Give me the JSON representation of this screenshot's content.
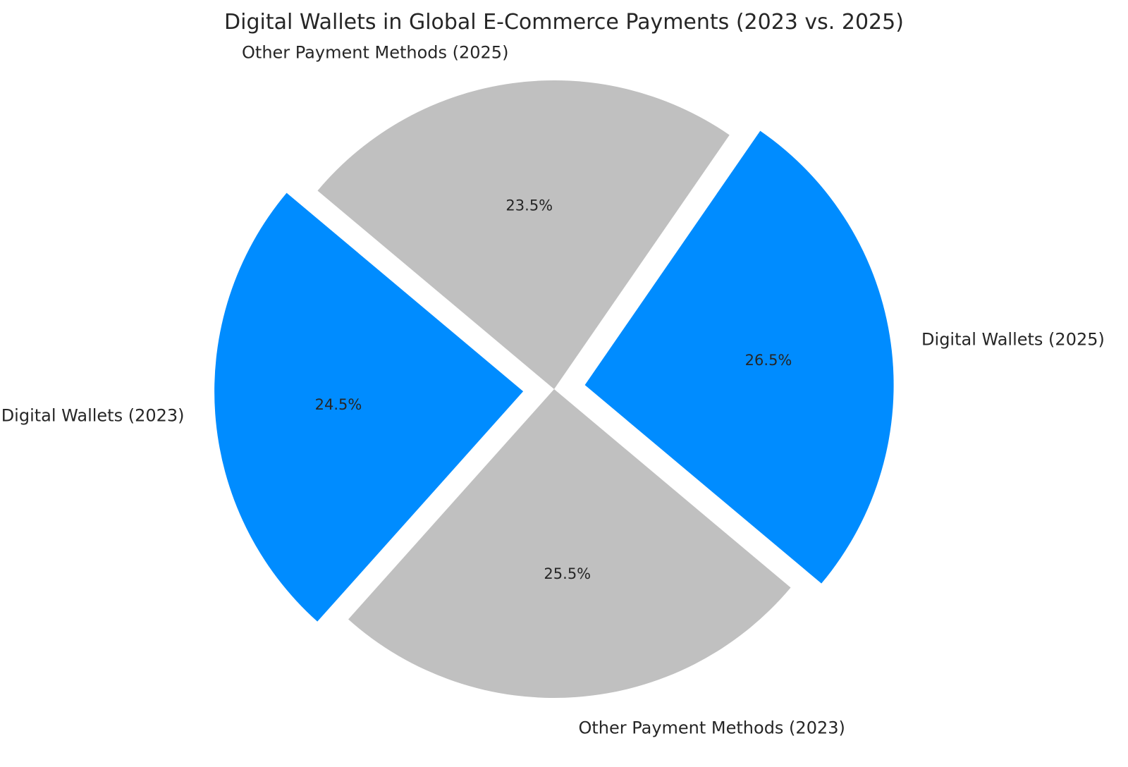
{
  "chart_data": {
    "type": "pie",
    "title": "Digital Wallets in Global E-Commerce Payments (2023 vs. 2025)",
    "start_angle_deg": 140,
    "direction": "counterclockwise",
    "slices": [
      {
        "label": "Digital Wallets (2023)",
        "value": 24.5,
        "pct_label": "24.5%",
        "color": "#008cff",
        "exploded": true
      },
      {
        "label": "Other Payment Methods (2023)",
        "value": 25.5,
        "pct_label": "25.5%",
        "color": "#c0c0c0",
        "exploded": false
      },
      {
        "label": "Digital Wallets (2025)",
        "value": 26.5,
        "pct_label": "26.5%",
        "color": "#008cff",
        "exploded": true
      },
      {
        "label": "Other Payment Methods (2025)",
        "value": 23.5,
        "pct_label": "23.5%",
        "color": "#c0c0c0",
        "exploded": false
      }
    ]
  }
}
